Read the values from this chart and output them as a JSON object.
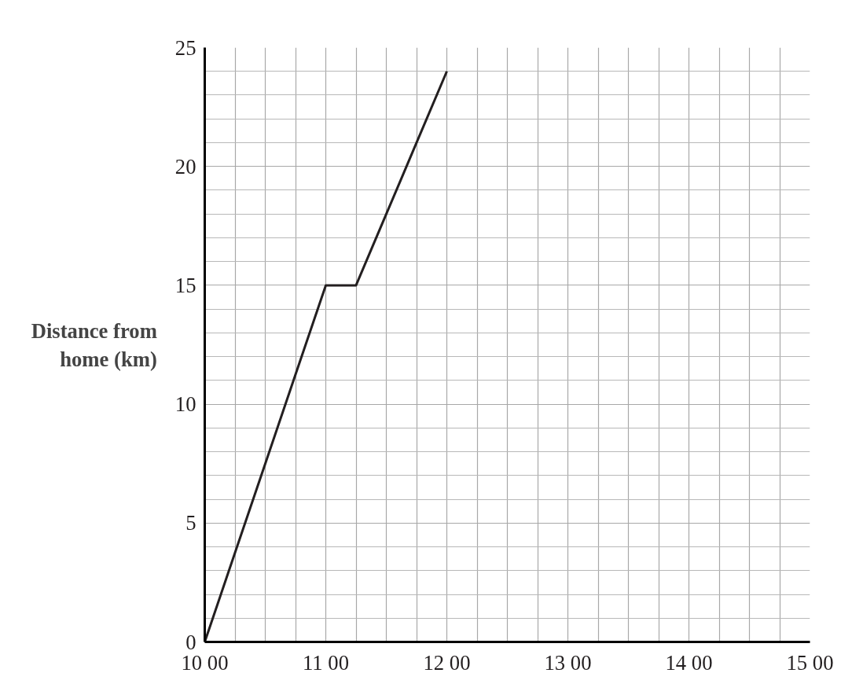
{
  "chart_data": {
    "type": "line",
    "ylabel": "Distance from home (km)",
    "categories": [
      "10 00",
      null,
      null,
      null,
      "11 00",
      null,
      null,
      null,
      "12 00",
      null,
      null,
      null,
      "13 00",
      null,
      null,
      null,
      "14 00",
      null,
      null,
      null,
      "15 00"
    ],
    "series": [
      {
        "color": "#231f20",
        "values": [
          0,
          3.75,
          7.5,
          11.25,
          15,
          15,
          18,
          21,
          24,
          null,
          null,
          null,
          null,
          null,
          null,
          null,
          null,
          null,
          null,
          null,
          null
        ]
      }
    ],
    "ylim": [
      0,
      25
    ],
    "yticks": [
      0,
      5,
      10,
      15,
      20,
      25
    ],
    "grid": true,
    "marker": "none",
    "line_style": "solid"
  }
}
